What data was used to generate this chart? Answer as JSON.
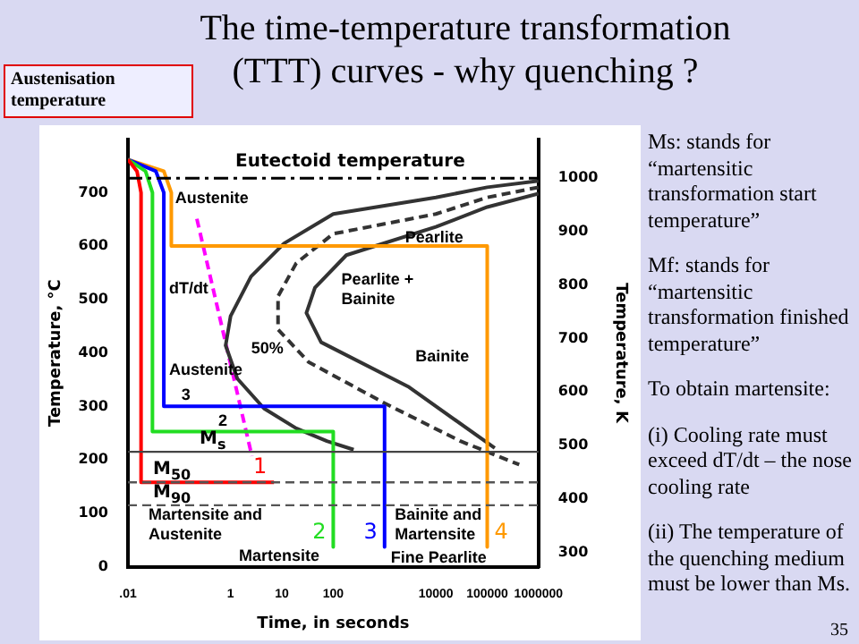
{
  "chart_data": {
    "type": "line",
    "title": "The time-temperature transformation (TTT) curves - why quenching ?",
    "xlabel": "Time, in seconds",
    "ylabel": "Temperature, °C",
    "y2label": "Temperature, K",
    "log": "x",
    "grid": false,
    "legend": false,
    "marker": "none",
    "xlim": [
      0.01,
      1000000
    ],
    "xticks": [
      {
        "value": 0.01,
        "label": ".01"
      },
      1,
      10,
      100,
      10000,
      100000,
      1000000
    ],
    "ylim": [
      0,
      800
    ],
    "yticks": [
      0,
      100,
      200,
      300,
      400,
      500,
      600,
      700
    ],
    "y2lim": [
      273,
      1073
    ],
    "y2ticks": [
      300,
      400,
      500,
      600,
      700,
      800,
      900,
      1000
    ],
    "series": [
      {
        "name": "1",
        "color": "#ff0000",
        "x": [
          0.01,
          0.015,
          0.018,
          0.018,
          7
        ],
        "values": [
          762,
          740,
          700,
          158,
          158
        ]
      },
      {
        "name": "2",
        "color": "#22dd22",
        "x": [
          0.01,
          0.022,
          0.03,
          0.03,
          100,
          100
        ],
        "values": [
          762,
          740,
          700,
          253,
          253,
          37
        ]
      },
      {
        "name": "3",
        "color": "#0000ff",
        "x": [
          0.01,
          0.035,
          0.05,
          0.05,
          1000,
          1000
        ],
        "values": [
          762,
          740,
          700,
          300,
          300,
          37
        ]
      },
      {
        "name": "4",
        "color": "#ff9900",
        "x": [
          0.01,
          0.05,
          0.07,
          0.07,
          100000,
          100000
        ],
        "values": [
          762,
          740,
          700,
          600,
          600,
          37
        ]
      },
      {
        "color": "#333333",
        "x": [
          1000000,
          100000,
          10000,
          100,
          11,
          2.5,
          1,
          0.8,
          1.35,
          4.5,
          19,
          75,
          250
        ],
        "values": [
          722,
          710,
          691,
          660,
          605,
          543,
          469,
          414,
          352,
          296,
          259,
          235,
          219
        ]
      },
      {
        "color": "#333333",
        "line_style": "dashed",
        "x": [
          1000000,
          100000,
          10000,
          100,
          19,
          8.4,
          8.4,
          33,
          1000,
          30000,
          420000
        ],
        "values": [
          710,
          691,
          660,
          623,
          568,
          506,
          444,
          383,
          306,
          235,
          191
        ]
      },
      {
        "color": "#333333",
        "x": [
          1000000,
          100000,
          10000,
          180,
          44,
          30,
          58,
          3000,
          140000
        ],
        "values": [
          698,
          673,
          636,
          583,
          522,
          475,
          420,
          336,
          222
        ]
      },
      {
        "color": "#ff00ff",
        "line_style": "dashed",
        "x": [
          0.22,
          2.6
        ],
        "values": [
          651,
          207
        ]
      }
    ],
    "ref_lines": [
      {
        "axis": "y",
        "value": 727,
        "label": "Eutectoid temperature",
        "line_style": "dashdot",
        "color": "#000000"
      },
      {
        "axis": "y",
        "value": 215,
        "label": "M$_{s}$",
        "line_style": "solid",
        "color": "#444444"
      },
      {
        "axis": "y",
        "value": 158,
        "label": "M$_{50}$",
        "line_style": "dashed",
        "color": "#555555"
      },
      {
        "axis": "y",
        "value": 115,
        "label": "M$_{90}$",
        "line_style": "dashed",
        "color": "#555555"
      }
    ],
    "annotations": [
      "Austenisation temperature",
      "Ms: stands for “martensitic transformation start temperature”",
      "Mf: stands for “martensitic transformation finished temperature”",
      "To obtain martensite:",
      "(i) Cooling rate must exceed dT/dt – the nose cooling rate",
      "(ii) The temperature of the quenching medium must be lower than Ms.",
      "35",
      "Austenite",
      "Pearlite",
      "Pearlite + Bainite",
      "Bainite",
      "50%",
      "Austenite",
      "dT/dt",
      "2",
      "3",
      "Martensite and Austenite",
      "Martensite",
      "Bainite and Martensite",
      "Fine Pearlite"
    ]
  }
}
